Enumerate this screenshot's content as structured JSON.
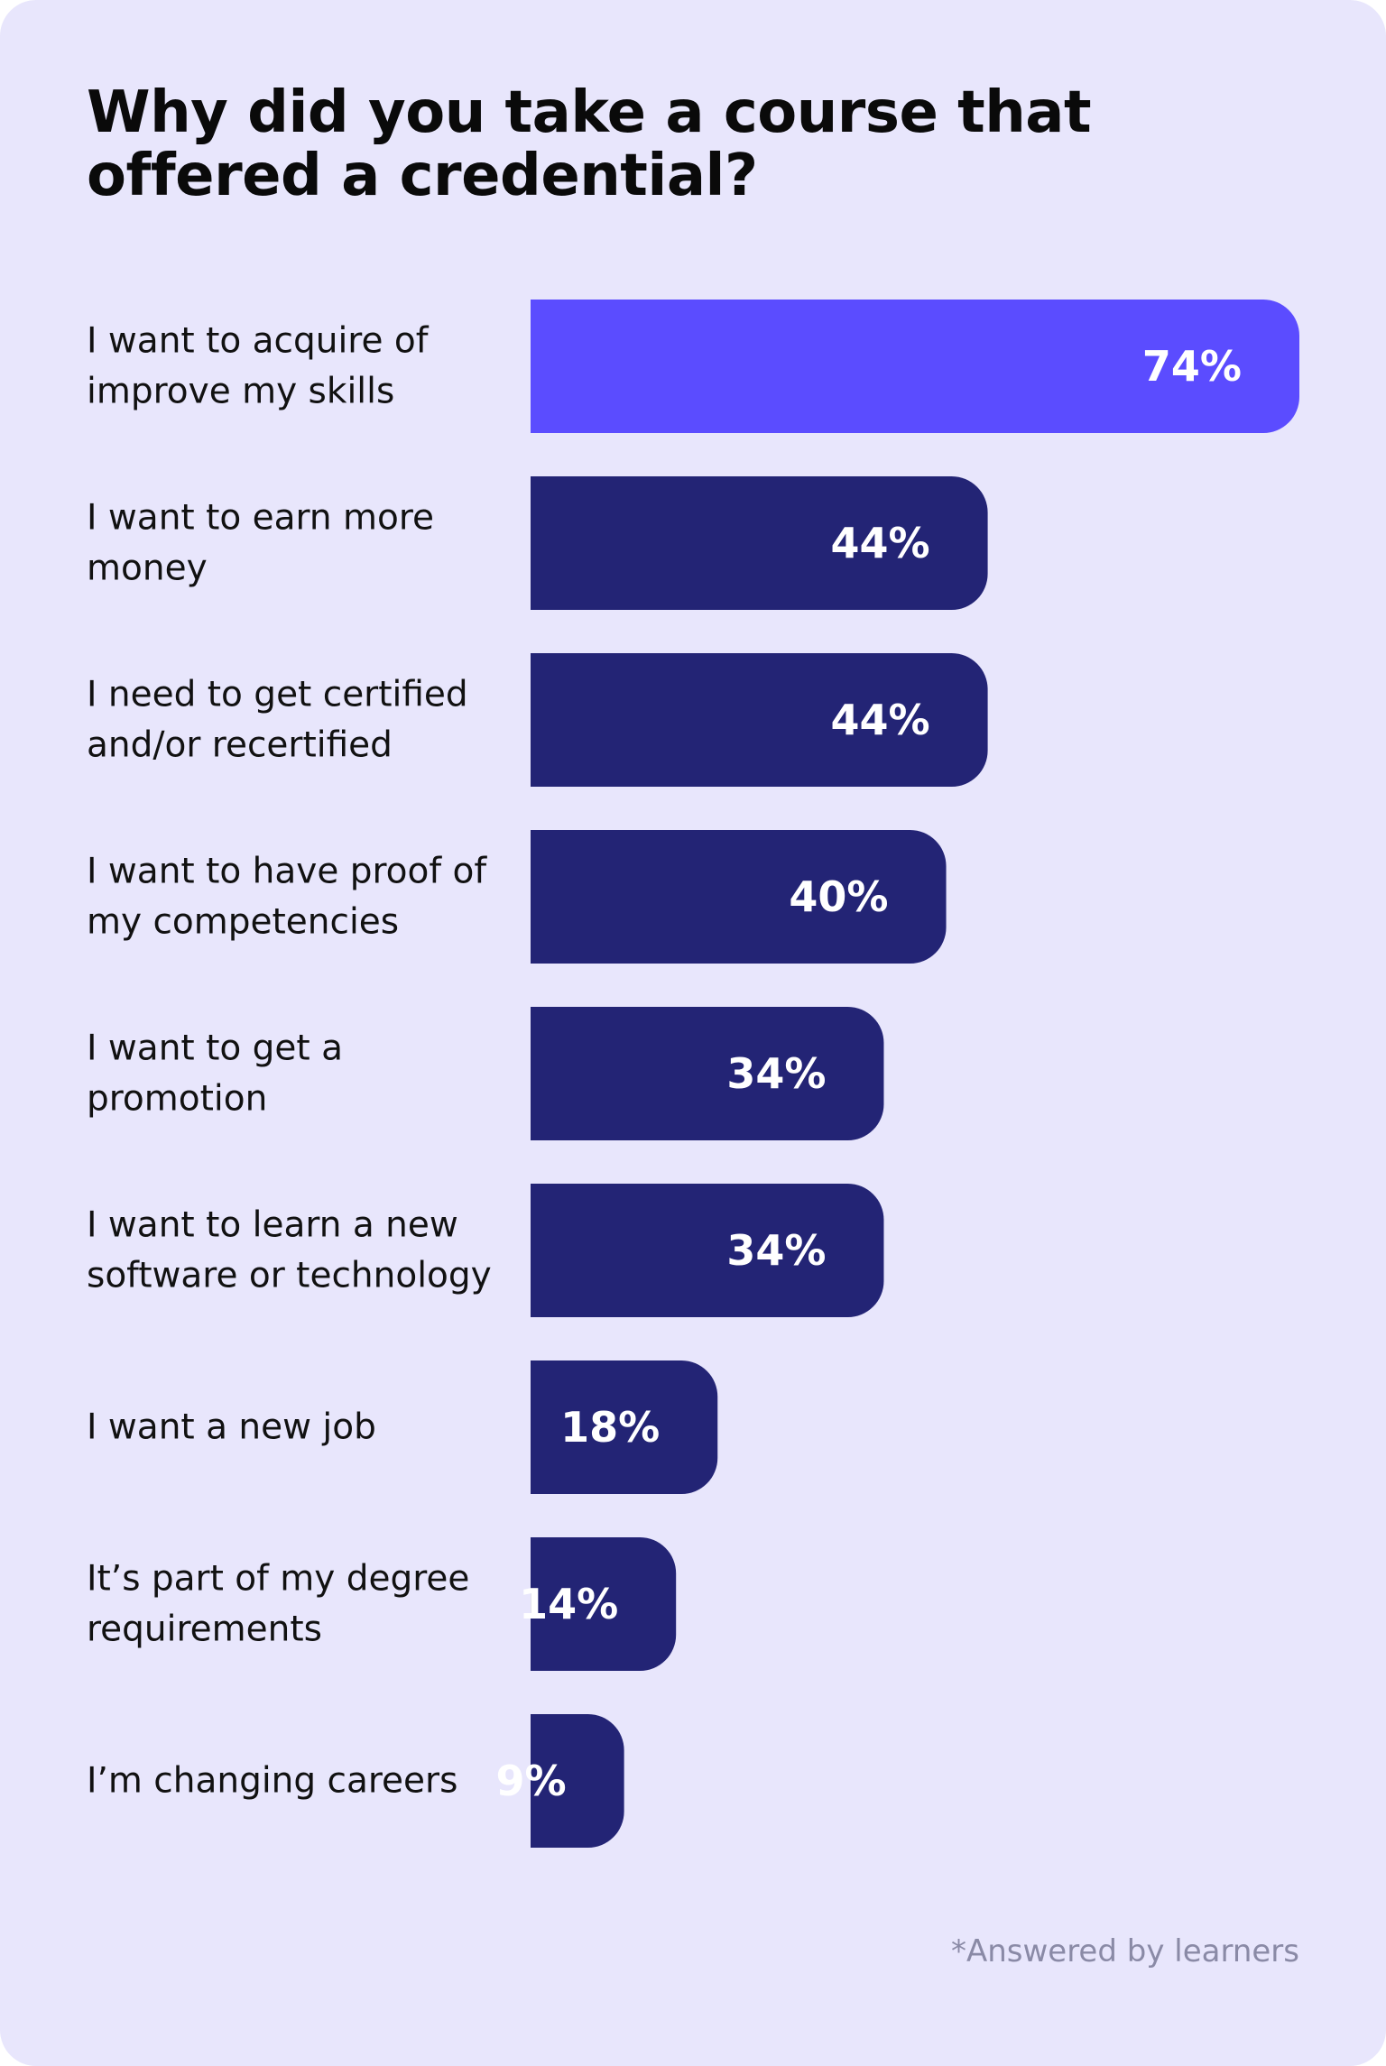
{
  "chart_data": {
    "type": "bar",
    "orientation": "horizontal",
    "title": "Why did you take a course that offered a credential?",
    "categories": [
      [
        "I want to acquire of",
        "improve my skills"
      ],
      [
        "I want to earn more",
        "money"
      ],
      [
        "I need to get certified",
        "and/or recertified"
      ],
      [
        "I want to have proof of",
        "my competencies"
      ],
      [
        "I want to get a",
        "promotion"
      ],
      [
        "I want to learn a new",
        "software or technology"
      ],
      [
        "I want a new job"
      ],
      [
        "It’s part of my degree",
        "requirements"
      ],
      [
        "I’m changing careers"
      ]
    ],
    "values": [
      74,
      44,
      44,
      40,
      34,
      34,
      18,
      14,
      9
    ],
    "value_labels": [
      "74%",
      "44%",
      "44%",
      "40%",
      "34%",
      "34%",
      "18%",
      "14%",
      "9%"
    ],
    "xlim": [
      0,
      74
    ],
    "grid": false,
    "highlight_index": 0,
    "colors": {
      "highlight": "#5b4cff",
      "bar": "#232475"
    },
    "footnote": "*Answered by learners"
  }
}
